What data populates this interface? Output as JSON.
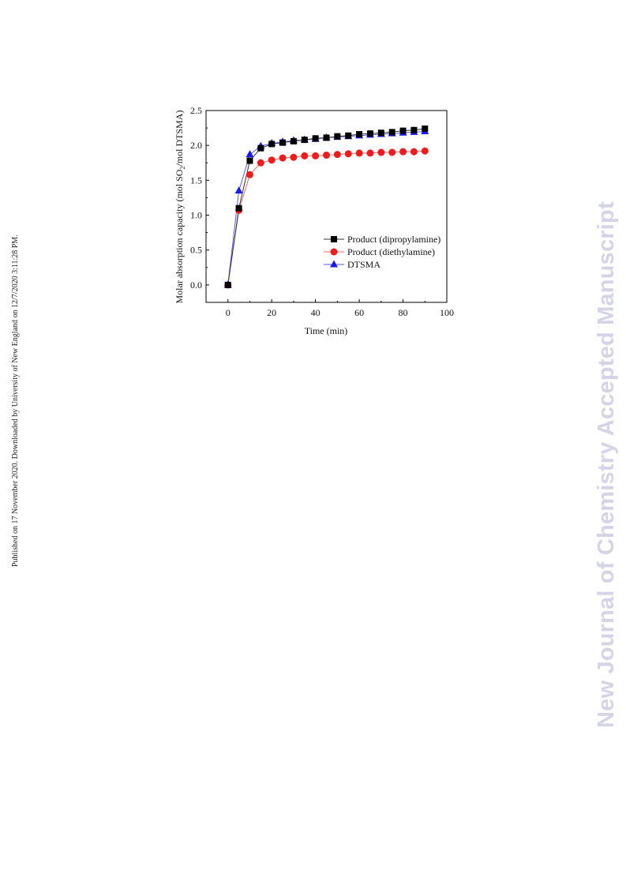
{
  "side_note": "Published on 17 November 2020. Downloaded by University of New England on 12/7/2020 3:11:28 PM.",
  "watermark": "New Journal of Chemistry Accepted Manuscript",
  "chart_data": {
    "type": "line",
    "xlabel": "Time (min)",
    "ylabel_parts": [
      "Molar absorption capacity (mol SO",
      "2",
      "/mol DTSMA)"
    ],
    "xlim": [
      -10,
      100
    ],
    "ylim": [
      -0.25,
      2.5
    ],
    "xticks": [
      0,
      20,
      40,
      60,
      80,
      100
    ],
    "yticks": [
      0.0,
      0.5,
      1.0,
      1.5,
      2.0,
      2.5
    ],
    "xtick_labels": [
      "0",
      "20",
      "40",
      "60",
      "80",
      "100"
    ],
    "ytick_labels": [
      "0.0",
      "0.5",
      "1.0",
      "1.5",
      "2.0",
      "2.5"
    ],
    "legend_position": "center-right",
    "x": [
      0,
      5,
      10,
      15,
      20,
      25,
      30,
      35,
      40,
      45,
      50,
      55,
      60,
      65,
      70,
      75,
      80,
      85,
      90
    ],
    "series": [
      {
        "name": "Product (dipropylamine)",
        "marker": "square",
        "color": "#000000",
        "line_color": "#333333",
        "values": [
          0.0,
          1.1,
          1.78,
          1.96,
          2.02,
          2.04,
          2.06,
          2.08,
          2.1,
          2.11,
          2.13,
          2.14,
          2.16,
          2.17,
          2.18,
          2.19,
          2.21,
          2.22,
          2.24
        ]
      },
      {
        "name": "Product (diethylamine)",
        "marker": "circle",
        "color": "#ee1c1c",
        "line_color": "#ee6a6a",
        "values": [
          0.0,
          1.07,
          1.58,
          1.75,
          1.79,
          1.82,
          1.83,
          1.85,
          1.85,
          1.86,
          1.87,
          1.88,
          1.89,
          1.89,
          1.9,
          1.9,
          1.91,
          1.91,
          1.92
        ]
      },
      {
        "name": "DTSMA",
        "marker": "triangle",
        "color": "#1a1aee",
        "line_color": "#5a5aee",
        "values": [
          0.0,
          1.35,
          1.87,
          1.99,
          2.03,
          2.05,
          2.07,
          2.08,
          2.09,
          2.11,
          2.12,
          2.13,
          2.14,
          2.15,
          2.16,
          2.17,
          2.18,
          2.19,
          2.2
        ]
      }
    ]
  }
}
